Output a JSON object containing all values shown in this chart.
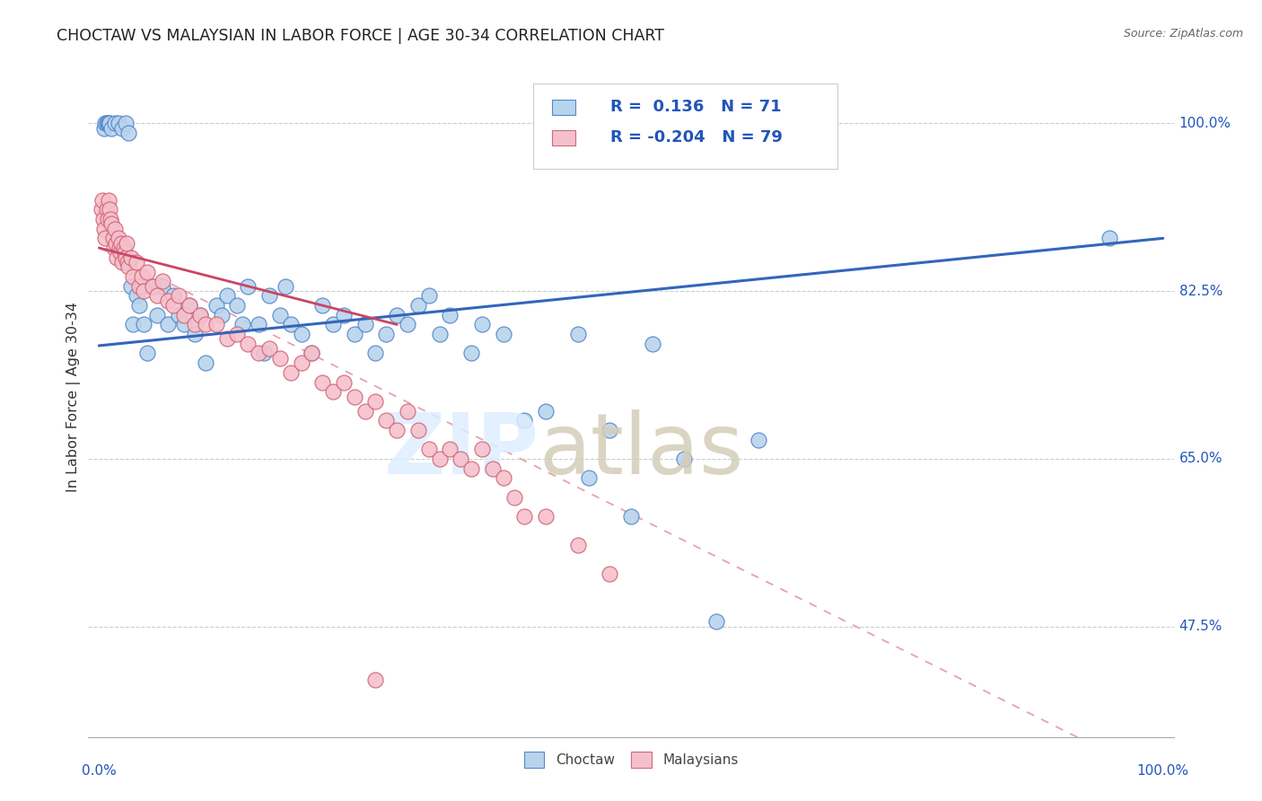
{
  "title": "CHOCTAW VS MALAYSIAN IN LABOR FORCE | AGE 30-34 CORRELATION CHART",
  "source": "Source: ZipAtlas.com",
  "ylabel": "In Labor Force | Age 30-34",
  "ytick_vals": [
    0.475,
    0.65,
    0.825,
    1.0
  ],
  "ytick_labels": [
    "47.5%",
    "65.0%",
    "82.5%",
    "100.0%"
  ],
  "legend_R": [
    "0.136",
    "-0.204"
  ],
  "legend_N": [
    "71",
    "79"
  ],
  "choctaw_fill": "#b8d4ec",
  "choctaw_edge": "#5588cc",
  "malaysian_fill": "#f5c0cc",
  "malaysian_edge": "#d06878",
  "choctaw_line_color": "#3366bb",
  "malaysian_solid_color": "#cc4466",
  "malaysian_dash_color": "#e8a0b0",
  "choctaw_x": [
    0.005,
    0.006,
    0.007,
    0.008,
    0.009,
    0.01,
    0.012,
    0.015,
    0.018,
    0.022,
    0.025,
    0.028,
    0.03,
    0.032,
    0.035,
    0.038,
    0.04,
    0.042,
    0.045,
    0.05,
    0.055,
    0.06,
    0.065,
    0.07,
    0.075,
    0.08,
    0.085,
    0.09,
    0.095,
    0.1,
    0.11,
    0.115,
    0.12,
    0.13,
    0.135,
    0.14,
    0.15,
    0.155,
    0.16,
    0.17,
    0.175,
    0.18,
    0.19,
    0.2,
    0.21,
    0.22,
    0.23,
    0.24,
    0.25,
    0.26,
    0.27,
    0.28,
    0.29,
    0.3,
    0.31,
    0.32,
    0.33,
    0.35,
    0.36,
    0.38,
    0.4,
    0.42,
    0.45,
    0.46,
    0.48,
    0.5,
    0.52,
    0.55,
    0.58,
    0.62,
    0.95
  ],
  "choctaw_y": [
    0.995,
    1.0,
    1.0,
    1.0,
    1.0,
    1.0,
    0.995,
    1.0,
    1.0,
    0.995,
    1.0,
    0.99,
    0.83,
    0.79,
    0.82,
    0.81,
    0.83,
    0.79,
    0.76,
    0.83,
    0.8,
    0.83,
    0.79,
    0.82,
    0.8,
    0.79,
    0.81,
    0.78,
    0.8,
    0.75,
    0.81,
    0.8,
    0.82,
    0.81,
    0.79,
    0.83,
    0.79,
    0.76,
    0.82,
    0.8,
    0.83,
    0.79,
    0.78,
    0.76,
    0.81,
    0.79,
    0.8,
    0.78,
    0.79,
    0.76,
    0.78,
    0.8,
    0.79,
    0.81,
    0.82,
    0.78,
    0.8,
    0.76,
    0.79,
    0.78,
    0.69,
    0.7,
    0.78,
    0.63,
    0.68,
    0.59,
    0.77,
    0.65,
    0.48,
    0.67,
    0.88
  ],
  "malaysian_x": [
    0.002,
    0.003,
    0.004,
    0.005,
    0.006,
    0.007,
    0.008,
    0.009,
    0.01,
    0.011,
    0.012,
    0.013,
    0.014,
    0.015,
    0.016,
    0.017,
    0.018,
    0.019,
    0.02,
    0.021,
    0.022,
    0.023,
    0.024,
    0.025,
    0.026,
    0.027,
    0.028,
    0.03,
    0.032,
    0.035,
    0.038,
    0.04,
    0.042,
    0.045,
    0.05,
    0.055,
    0.06,
    0.065,
    0.07,
    0.075,
    0.08,
    0.085,
    0.09,
    0.095,
    0.1,
    0.11,
    0.12,
    0.13,
    0.14,
    0.15,
    0.16,
    0.17,
    0.18,
    0.19,
    0.2,
    0.21,
    0.22,
    0.23,
    0.24,
    0.25,
    0.26,
    0.27,
    0.28,
    0.29,
    0.3,
    0.31,
    0.32,
    0.33,
    0.34,
    0.35,
    0.36,
    0.37,
    0.38,
    0.39,
    0.4,
    0.42,
    0.45,
    0.48,
    0.26
  ],
  "malaysian_y": [
    0.91,
    0.92,
    0.9,
    0.89,
    0.88,
    0.91,
    0.9,
    0.92,
    0.91,
    0.9,
    0.895,
    0.88,
    0.87,
    0.89,
    0.875,
    0.86,
    0.88,
    0.87,
    0.865,
    0.875,
    0.855,
    0.87,
    0.865,
    0.86,
    0.875,
    0.855,
    0.85,
    0.86,
    0.84,
    0.855,
    0.83,
    0.84,
    0.825,
    0.845,
    0.83,
    0.82,
    0.835,
    0.815,
    0.81,
    0.82,
    0.8,
    0.81,
    0.79,
    0.8,
    0.79,
    0.79,
    0.775,
    0.78,
    0.77,
    0.76,
    0.765,
    0.755,
    0.74,
    0.75,
    0.76,
    0.73,
    0.72,
    0.73,
    0.715,
    0.7,
    0.71,
    0.69,
    0.68,
    0.7,
    0.68,
    0.66,
    0.65,
    0.66,
    0.65,
    0.64,
    0.66,
    0.64,
    0.63,
    0.61,
    0.59,
    0.59,
    0.56,
    0.53,
    0.42
  ],
  "choctaw_trend": [
    0.0,
    1.0,
    0.768,
    0.88
  ],
  "malaysian_solid_trend": [
    0.0,
    0.28,
    0.87,
    0.79
  ],
  "malaysian_dash_trend": [
    0.0,
    1.0,
    0.87,
    0.315
  ]
}
